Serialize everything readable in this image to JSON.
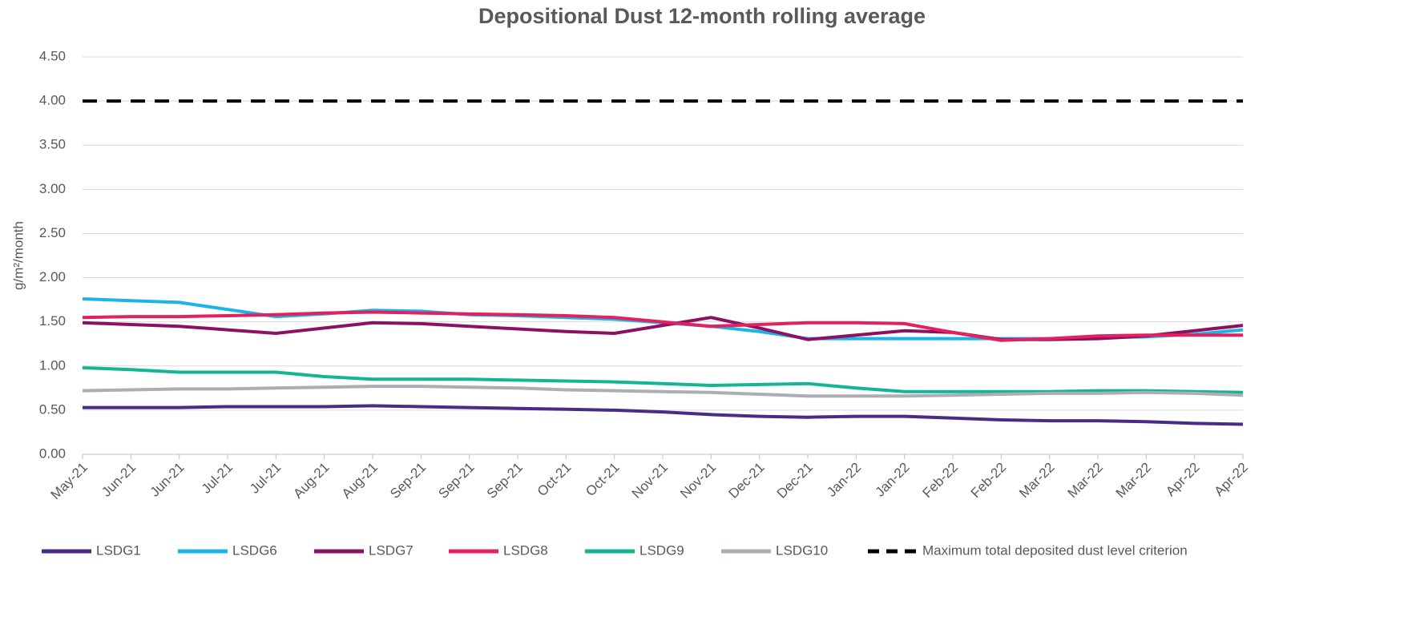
{
  "chart_data": {
    "type": "line",
    "title": "Depositional Dust 12-month rolling average",
    "y_label": "g/m²/month",
    "categories": [
      "May-21",
      "Jun-21",
      "Jun-21",
      "Jul-21",
      "Jul-21",
      "Aug-21",
      "Aug-21",
      "Sep-21",
      "Sep-21",
      "Sep-21",
      "Oct-21",
      "Oct-21",
      "Nov-21",
      "Nov-21",
      "Dec-21",
      "Dec-21",
      "Jan-22",
      "Jan-22",
      "Feb-22",
      "Feb-22",
      "Mar-22",
      "Mar-22",
      "Mar-22",
      "Apr-22",
      "Apr-22"
    ],
    "series": [
      {
        "name": "LSDG1",
        "color": "#4a2c87",
        "values": [
          0.53,
          0.53,
          0.53,
          0.54,
          0.54,
          0.54,
          0.55,
          0.54,
          0.53,
          0.52,
          0.51,
          0.5,
          0.48,
          0.45,
          0.43,
          0.42,
          0.43,
          0.43,
          0.41,
          0.39,
          0.38,
          0.38,
          0.37,
          0.35,
          0.34
        ]
      },
      {
        "name": "LSDG6",
        "color": "#19b4ea",
        "values": [
          1.76,
          1.74,
          1.72,
          1.64,
          1.56,
          1.59,
          1.63,
          1.62,
          1.58,
          1.57,
          1.55,
          1.53,
          1.49,
          1.45,
          1.39,
          1.31,
          1.31,
          1.31,
          1.31,
          1.31,
          1.31,
          1.32,
          1.33,
          1.36,
          1.41
        ]
      },
      {
        "name": "LSDG7",
        "color": "#8c1162",
        "values": [
          1.49,
          1.47,
          1.45,
          1.41,
          1.37,
          1.43,
          1.49,
          1.48,
          1.45,
          1.42,
          1.39,
          1.37,
          1.46,
          1.55,
          1.43,
          1.3,
          1.35,
          1.4,
          1.38,
          1.3,
          1.3,
          1.31,
          1.34,
          1.4,
          1.46
        ]
      },
      {
        "name": "LSDG8",
        "color": "#e2215e",
        "values": [
          1.55,
          1.56,
          1.56,
          1.57,
          1.58,
          1.6,
          1.61,
          1.6,
          1.59,
          1.58,
          1.57,
          1.55,
          1.5,
          1.45,
          1.47,
          1.49,
          1.49,
          1.48,
          1.38,
          1.29,
          1.31,
          1.34,
          1.35,
          1.35,
          1.35
        ]
      },
      {
        "name": "LSDG9",
        "color": "#12b594",
        "values": [
          0.98,
          0.96,
          0.93,
          0.93,
          0.93,
          0.88,
          0.85,
          0.85,
          0.85,
          0.84,
          0.83,
          0.82,
          0.8,
          0.78,
          0.79,
          0.8,
          0.75,
          0.71,
          0.71,
          0.71,
          0.71,
          0.72,
          0.72,
          0.71,
          0.7
        ]
      },
      {
        "name": "LSDG10",
        "color": "#abaeb3",
        "values": [
          0.72,
          0.73,
          0.74,
          0.74,
          0.75,
          0.76,
          0.77,
          0.77,
          0.76,
          0.75,
          0.73,
          0.72,
          0.71,
          0.7,
          0.68,
          0.66,
          0.66,
          0.66,
          0.67,
          0.68,
          0.69,
          0.69,
          0.7,
          0.69,
          0.67
        ]
      },
      {
        "name": "Maximum total deposited dust level criterion",
        "color": "#000000",
        "dashed": true,
        "values": [
          4,
          4,
          4,
          4,
          4,
          4,
          4,
          4,
          4,
          4,
          4,
          4,
          4,
          4,
          4,
          4,
          4,
          4,
          4,
          4,
          4,
          4,
          4,
          4,
          4
        ]
      }
    ],
    "ylim": [
      0,
      4.5
    ],
    "yticks": [
      {
        "value": 0,
        "label": "0.00"
      },
      {
        "value": 0.5,
        "label": "0.50"
      },
      {
        "value": 1,
        "label": "1.00"
      },
      {
        "value": 1.5,
        "label": "1.50"
      },
      {
        "value": 2,
        "label": "2.00"
      },
      {
        "value": 2.5,
        "label": "2.50"
      },
      {
        "value": 3,
        "label": "3.00"
      },
      {
        "value": 3.5,
        "label": "3.50"
      },
      {
        "value": 4,
        "label": "4.00"
      },
      {
        "value": 4.5,
        "label": "4.50"
      }
    ],
    "grid": true,
    "legend": "bottom"
  }
}
